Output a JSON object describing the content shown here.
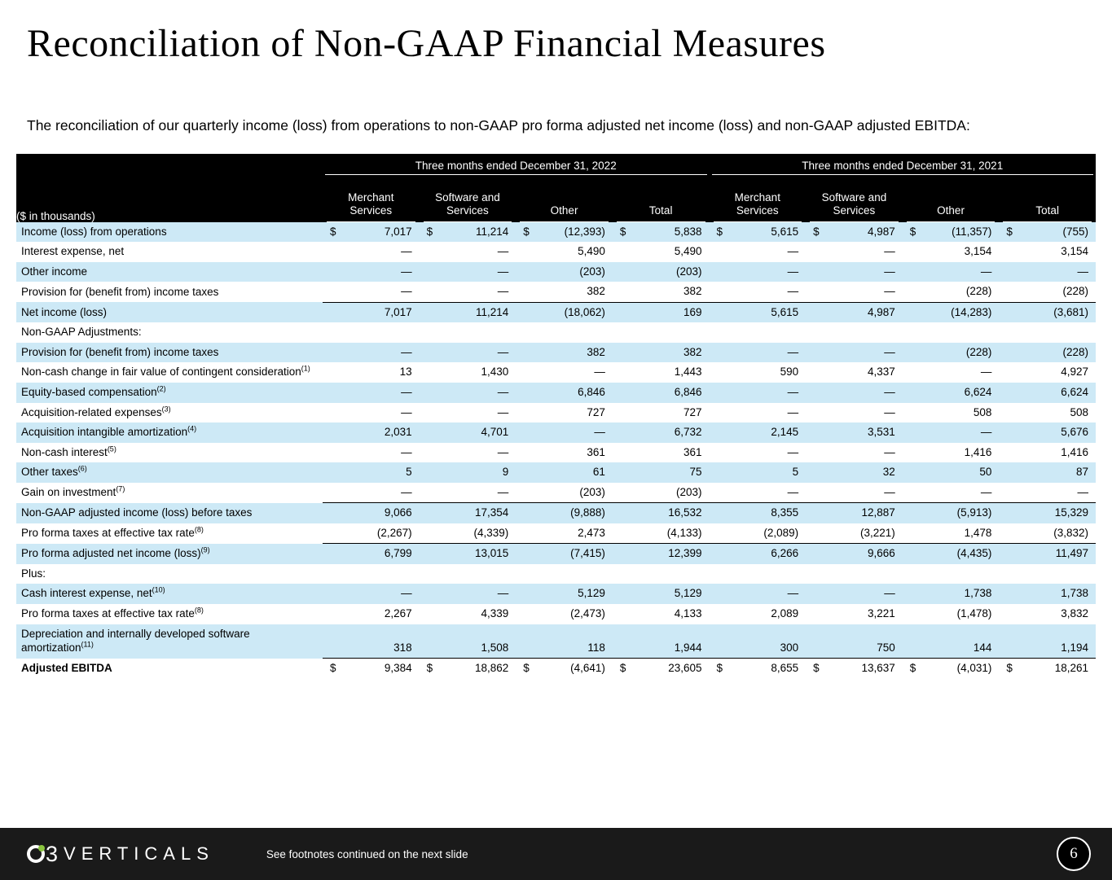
{
  "slide": {
    "title": "Reconciliation of Non-GAAP Financial Measures",
    "intro": "The reconciliation of our quarterly income (loss) from operations to non-GAAP pro forma adjusted net income (loss) and non-GAAP adjusted EBITDA:"
  },
  "colors": {
    "row_shade": "#cde9f6",
    "header_bg": "#000000",
    "footer_bg": "#1a1a1a",
    "brand_green": "#8bc53f"
  },
  "table": {
    "units_label": "($ in thousands)",
    "groups": [
      "Three months ended December 31, 2022",
      "Three months ended December 31, 2021"
    ],
    "columns": [
      "Merchant Services",
      "Software and Services",
      "Other",
      "Total",
      "Merchant Services",
      "Software and Services",
      "Other",
      "Total"
    ],
    "rows": [
      {
        "label": "Income (loss) from operations",
        "sup": "",
        "shade": true,
        "bold": false,
        "dollar": true,
        "topline": false,
        "values": [
          "7,017",
          "11,214",
          "(12,393)",
          "5,838",
          "5,615",
          "4,987",
          "(11,357)",
          "(755)"
        ]
      },
      {
        "label": "Interest expense, net",
        "sup": "",
        "shade": false,
        "bold": false,
        "dollar": false,
        "topline": false,
        "values": [
          "—",
          "—",
          "5,490",
          "5,490",
          "—",
          "—",
          "3,154",
          "3,154"
        ]
      },
      {
        "label": "Other income",
        "sup": "",
        "shade": true,
        "bold": false,
        "dollar": false,
        "topline": false,
        "values": [
          "—",
          "—",
          "(203)",
          "(203)",
          "—",
          "—",
          "—",
          "—"
        ]
      },
      {
        "label": "Provision for (benefit from) income taxes",
        "sup": "",
        "shade": false,
        "bold": false,
        "dollar": false,
        "topline": false,
        "values": [
          "—",
          "—",
          "382",
          "382",
          "—",
          "—",
          "(228)",
          "(228)"
        ]
      },
      {
        "label": "Net income (loss)",
        "sup": "",
        "shade": true,
        "bold": false,
        "dollar": false,
        "topline": true,
        "values": [
          "7,017",
          "11,214",
          "(18,062)",
          "169",
          "5,615",
          "4,987",
          "(14,283)",
          "(3,681)"
        ]
      },
      {
        "label": "Non-GAAP Adjustments:",
        "sup": "",
        "shade": false,
        "bold": false,
        "dollar": false,
        "topline": false,
        "values": null
      },
      {
        "label": "Provision for (benefit from) income taxes",
        "sup": "",
        "shade": true,
        "bold": false,
        "dollar": false,
        "topline": false,
        "values": [
          "—",
          "—",
          "382",
          "382",
          "—",
          "—",
          "(228)",
          "(228)"
        ]
      },
      {
        "label": "Non-cash change in fair value of contingent consideration",
        "sup": "(1)",
        "shade": false,
        "bold": false,
        "dollar": false,
        "topline": false,
        "values": [
          "13",
          "1,430",
          "—",
          "1,443",
          "590",
          "4,337",
          "—",
          "4,927"
        ]
      },
      {
        "label": "Equity-based compensation",
        "sup": "(2)",
        "shade": true,
        "bold": false,
        "dollar": false,
        "topline": false,
        "values": [
          "—",
          "—",
          "6,846",
          "6,846",
          "—",
          "—",
          "6,624",
          "6,624"
        ]
      },
      {
        "label": "Acquisition-related expenses",
        "sup": "(3)",
        "shade": false,
        "bold": false,
        "dollar": false,
        "topline": false,
        "values": [
          "—",
          "—",
          "727",
          "727",
          "—",
          "—",
          "508",
          "508"
        ]
      },
      {
        "label": "Acquisition intangible amortization",
        "sup": "(4)",
        "shade": true,
        "bold": false,
        "dollar": false,
        "topline": false,
        "values": [
          "2,031",
          "4,701",
          "—",
          "6,732",
          "2,145",
          "3,531",
          "—",
          "5,676"
        ]
      },
      {
        "label": "Non-cash interest",
        "sup": "(5)",
        "shade": false,
        "bold": false,
        "dollar": false,
        "topline": false,
        "values": [
          "—",
          "—",
          "361",
          "361",
          "—",
          "—",
          "1,416",
          "1,416"
        ]
      },
      {
        "label": "Other taxes",
        "sup": "(6)",
        "shade": true,
        "bold": false,
        "dollar": false,
        "topline": false,
        "values": [
          "5",
          "9",
          "61",
          "75",
          "5",
          "32",
          "50",
          "87"
        ]
      },
      {
        "label": "Gain on investment",
        "sup": "(7)",
        "shade": false,
        "bold": false,
        "dollar": false,
        "topline": false,
        "values": [
          "—",
          "—",
          "(203)",
          "(203)",
          "—",
          "—",
          "—",
          "—"
        ]
      },
      {
        "label": "Non-GAAP adjusted income (loss) before taxes",
        "sup": "",
        "shade": true,
        "bold": false,
        "dollar": false,
        "topline": true,
        "values": [
          "9,066",
          "17,354",
          "(9,888)",
          "16,532",
          "8,355",
          "12,887",
          "(5,913)",
          "15,329"
        ]
      },
      {
        "label": "Pro forma taxes at effective tax rate",
        "sup": "(8)",
        "shade": false,
        "bold": false,
        "dollar": false,
        "topline": false,
        "values": [
          "(2,267)",
          "(4,339)",
          "2,473",
          "(4,133)",
          "(2,089)",
          "(3,221)",
          "1,478",
          "(3,832)"
        ]
      },
      {
        "label": "Pro forma adjusted net income (loss)",
        "sup": "(9)",
        "shade": true,
        "bold": false,
        "dollar": false,
        "topline": true,
        "values": [
          "6,799",
          "13,015",
          "(7,415)",
          "12,399",
          "6,266",
          "9,666",
          "(4,435)",
          "11,497"
        ]
      },
      {
        "label": "Plus:",
        "sup": "",
        "shade": false,
        "bold": false,
        "dollar": false,
        "topline": false,
        "values": null
      },
      {
        "label": "Cash interest expense, net",
        "sup": "(10)",
        "shade": true,
        "bold": false,
        "dollar": false,
        "topline": false,
        "values": [
          "—",
          "—",
          "5,129",
          "5,129",
          "—",
          "—",
          "1,738",
          "1,738"
        ]
      },
      {
        "label": "Pro forma taxes at effective tax rate",
        "sup": "(8)",
        "shade": false,
        "bold": false,
        "dollar": false,
        "topline": false,
        "values": [
          "2,267",
          "4,339",
          "(2,473)",
          "4,133",
          "2,089",
          "3,221",
          "(1,478)",
          "3,832"
        ]
      },
      {
        "label": "Depreciation and internally developed software amortization",
        "sup": "(11)",
        "shade": true,
        "bold": false,
        "dollar": false,
        "topline": false,
        "values": [
          "318",
          "1,508",
          "118",
          "1,944",
          "300",
          "750",
          "144",
          "1,194"
        ]
      },
      {
        "label": "Adjusted EBITDA",
        "sup": "",
        "shade": false,
        "bold": true,
        "dollar": true,
        "topline": true,
        "values": [
          "9,384",
          "18,862",
          "(4,641)",
          "23,605",
          "8,655",
          "13,637",
          "(4,031)",
          "18,261"
        ]
      }
    ]
  },
  "footer": {
    "brand_mark": "3",
    "brand": "VERTICALS",
    "note": "See footnotes continued on the next slide",
    "page_number": "6"
  }
}
